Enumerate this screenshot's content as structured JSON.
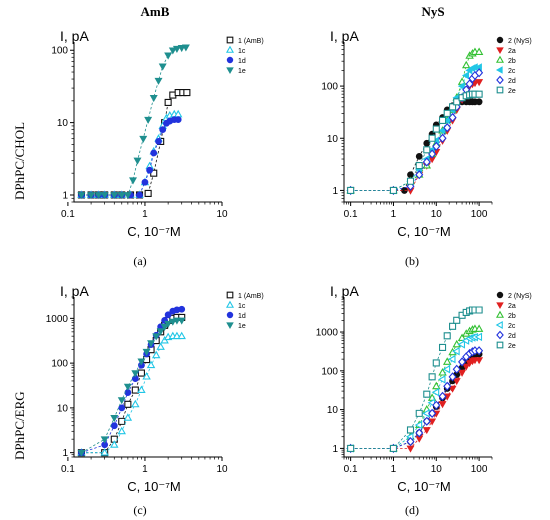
{
  "column_titles": [
    "AmB",
    "NyS"
  ],
  "row_labels": [
    "DPhPC/CHOL",
    "DPhPC/ERG"
  ],
  "panel_labels": [
    "(a)",
    "(b)",
    "(c)",
    "(d)"
  ],
  "colors": {
    "black": "#111111",
    "red": "#e02020",
    "green": "#33c033",
    "cyan": "#22c6e6",
    "blue": "#2233dd",
    "teal": "#1f8f8f"
  },
  "chart_data": [
    {
      "type": "scatter",
      "panel": "(a)",
      "xscale": "log",
      "yscale": "log",
      "ylabel": "I, pA",
      "xlabel": "C, 10⁻⁷M",
      "xlim": [
        0.12,
        10
      ],
      "ylim": [
        0.8,
        130
      ],
      "xticks": [
        0.1,
        1,
        10
      ],
      "xtick_labels": [
        "0.1",
        "1",
        "10"
      ],
      "yticks": [
        1,
        10,
        100
      ],
      "ytick_labels": [
        "1",
        "10",
        "100"
      ],
      "series": [
        {
          "name": "1 (AmB)",
          "color": "#111111",
          "marker": "square-open",
          "x": [
            0.15,
            0.2,
            0.25,
            0.3,
            0.4,
            0.5,
            0.65,
            0.85,
            1.1,
            1.3,
            1.6,
            1.8,
            2.0,
            2.3,
            2.7,
            3.1,
            3.5
          ],
          "y": [
            1,
            1,
            1,
            1,
            1,
            1,
            1,
            1,
            1.05,
            2.0,
            5.5,
            10,
            19,
            24,
            26,
            26,
            26
          ]
        },
        {
          "name": "1c",
          "color": "#22c6e6",
          "marker": "triangle-up-open",
          "x": [
            0.15,
            0.2,
            0.25,
            0.3,
            0.4,
            0.5,
            0.65,
            0.85,
            1.0,
            1.15,
            1.3,
            1.5,
            1.7,
            1.9,
            2.1,
            2.4,
            2.7
          ],
          "y": [
            1,
            1,
            1,
            1,
            1,
            1,
            1,
            1,
            1.5,
            2.5,
            4,
            6,
            9,
            11.5,
            12.5,
            13,
            13
          ]
        },
        {
          "name": "1d",
          "color": "#2233dd",
          "marker": "circle-filled",
          "x": [
            0.15,
            0.2,
            0.25,
            0.3,
            0.4,
            0.5,
            0.65,
            0.85,
            1.0,
            1.15,
            1.3,
            1.5,
            1.7,
            1.9,
            2.1,
            2.4,
            2.7
          ],
          "y": [
            1,
            1,
            1,
            1,
            1,
            1,
            1,
            1,
            1.5,
            2.2,
            3.8,
            5.5,
            8,
            9.8,
            10.5,
            11,
            11
          ]
        },
        {
          "name": "1e",
          "color": "#1f8f8f",
          "marker": "triangle-down-filled",
          "x": [
            0.15,
            0.2,
            0.25,
            0.3,
            0.4,
            0.5,
            0.6,
            0.7,
            0.8,
            0.95,
            1.1,
            1.3,
            1.5,
            1.7,
            2.0,
            2.3,
            2.6,
            3.0,
            3.4
          ],
          "y": [
            1,
            1,
            1,
            1,
            1,
            1,
            1,
            1.6,
            3,
            6,
            11,
            22,
            38,
            60,
            85,
            100,
            105,
            108,
            110
          ]
        }
      ]
    },
    {
      "type": "scatter",
      "panel": "(b)",
      "xscale": "log",
      "yscale": "log",
      "ylabel": "I, pA",
      "xlabel": "C, 10⁻⁷M",
      "xlim": [
        0.07,
        200
      ],
      "ylim": [
        0.6,
        700
      ],
      "xticks": [
        0.1,
        1,
        10,
        100
      ],
      "xtick_labels": [
        "0.1",
        "1",
        "10",
        "100"
      ],
      "yticks": [
        1,
        10,
        100
      ],
      "ytick_labels": [
        "1",
        "10",
        "100"
      ],
      "series": [
        {
          "name": "2 (NyS)",
          "color": "#111111",
          "marker": "circle-filled",
          "x": [
            0.1,
            1,
            1.8,
            2.5,
            4,
            6,
            8,
            10,
            14,
            18,
            24,
            30,
            40,
            50,
            60,
            70,
            80,
            100
          ],
          "y": [
            1,
            1,
            1,
            2,
            4.5,
            8,
            12,
            18,
            25,
            35,
            42,
            48,
            50,
            50,
            50,
            50,
            50,
            50
          ]
        },
        {
          "name": "2a",
          "color": "#e02020",
          "marker": "triangle-down-filled",
          "x": [
            0.1,
            1,
            2.5,
            4,
            6,
            8,
            10,
            14,
            18,
            24,
            30,
            40,
            50,
            60,
            70,
            80,
            100
          ],
          "y": [
            1,
            1,
            1,
            2,
            3,
            4,
            5.5,
            9,
            14,
            22,
            35,
            55,
            80,
            100,
            110,
            115,
            120
          ]
        },
        {
          "name": "2b",
          "color": "#33c033",
          "marker": "triangle-up-open",
          "x": [
            0.1,
            1,
            2.5,
            4,
            6,
            8,
            10,
            14,
            18,
            24,
            30,
            40,
            50,
            60,
            70,
            80,
            100
          ],
          "y": [
            1,
            1,
            1.5,
            2,
            3,
            5,
            8,
            14,
            22,
            35,
            60,
            120,
            250,
            380,
            420,
            450,
            450
          ]
        },
        {
          "name": "2c",
          "color": "#22c6e6",
          "marker": "triangle-left-filled",
          "x": [
            0.1,
            1,
            2.5,
            4,
            6,
            8,
            10,
            14,
            18,
            24,
            30,
            40,
            50,
            60,
            70,
            80,
            100
          ],
          "y": [
            1,
            1,
            1.5,
            2.5,
            4,
            6,
            9,
            14,
            22,
            35,
            60,
            100,
            160,
            200,
            220,
            230,
            230
          ]
        },
        {
          "name": "2d",
          "color": "#2233dd",
          "marker": "diamond-open",
          "x": [
            0.1,
            1,
            2.5,
            4,
            6,
            8,
            10,
            14,
            18,
            24,
            30,
            40,
            50,
            60,
            70,
            80,
            100
          ],
          "y": [
            1,
            1,
            1.2,
            2,
            3.5,
            5,
            7,
            10,
            16,
            25,
            40,
            60,
            85,
            110,
            140,
            160,
            180
          ]
        },
        {
          "name": "2e",
          "color": "#1f8f8f",
          "marker": "square-open",
          "x": [
            0.1,
            1,
            2.5,
            4,
            6,
            8,
            10,
            14,
            18,
            24,
            30,
            40,
            50,
            60,
            70,
            80,
            100
          ],
          "y": [
            1,
            1,
            1.5,
            3,
            6,
            10,
            15,
            22,
            30,
            40,
            50,
            60,
            65,
            68,
            70,
            70,
            70
          ]
        }
      ]
    },
    {
      "type": "scatter",
      "panel": "(c)",
      "xscale": "log",
      "yscale": "log",
      "ylabel": "I, pA",
      "xlabel": "C, 10⁻⁷M",
      "xlim": [
        0.12,
        10
      ],
      "ylim": [
        0.8,
        3000
      ],
      "xticks": [
        0.1,
        1,
        10
      ],
      "xtick_labels": [
        "0.1",
        "1",
        "10"
      ],
      "yticks": [
        1,
        10,
        100,
        1000
      ],
      "ytick_labels": [
        "1",
        "10",
        "100",
        "1000"
      ],
      "series": [
        {
          "name": "1 (AmB)",
          "color": "#111111",
          "marker": "square-open",
          "x": [
            0.15,
            0.3,
            0.4,
            0.5,
            0.6,
            0.75,
            0.9,
            1.05,
            1.2,
            1.4,
            1.6,
            1.8,
            2.0,
            2.3,
            2.6,
            3.0
          ],
          "y": [
            1,
            1,
            2,
            5,
            12,
            25,
            60,
            120,
            200,
            320,
            500,
            700,
            900,
            1000,
            1050,
            1050
          ]
        },
        {
          "name": "1c",
          "color": "#22c6e6",
          "marker": "triangle-up-open",
          "x": [
            0.15,
            0.3,
            0.4,
            0.5,
            0.6,
            0.75,
            0.9,
            1.05,
            1.2,
            1.4,
            1.6,
            1.8,
            2.0,
            2.3,
            2.6,
            3.0
          ],
          "y": [
            1,
            1,
            1.5,
            3,
            6,
            12,
            25,
            50,
            90,
            150,
            230,
            320,
            380,
            400,
            400,
            400
          ]
        },
        {
          "name": "1d",
          "color": "#2233dd",
          "marker": "circle-filled",
          "x": [
            0.15,
            0.3,
            0.4,
            0.5,
            0.6,
            0.75,
            0.9,
            1.05,
            1.2,
            1.4,
            1.6,
            1.8,
            2.0,
            2.3,
            2.6,
            3.0
          ],
          "y": [
            1,
            1.5,
            4,
            10,
            22,
            45,
            90,
            160,
            260,
            420,
            650,
            900,
            1200,
            1450,
            1550,
            1600
          ]
        },
        {
          "name": "1e",
          "color": "#1f8f8f",
          "marker": "triangle-down-filled",
          "x": [
            0.15,
            0.3,
            0.4,
            0.5,
            0.6,
            0.75,
            0.9,
            1.05,
            1.2,
            1.4,
            1.6,
            1.8,
            2.0,
            2.3,
            2.6,
            3.0
          ],
          "y": [
            1,
            2,
            6,
            15,
            30,
            60,
            110,
            180,
            280,
            400,
            520,
            650,
            760,
            850,
            900,
            900
          ]
        }
      ]
    },
    {
      "type": "scatter",
      "panel": "(d)",
      "xscale": "log",
      "yscale": "log",
      "ylabel": "I, pA",
      "xlabel": "C, 10⁻⁷M",
      "xlim": [
        0.07,
        200
      ],
      "ylim": [
        0.6,
        8000
      ],
      "xticks": [
        0.1,
        1,
        10,
        100
      ],
      "xtick_labels": [
        "0.1",
        "1",
        "10",
        "100"
      ],
      "yticks": [
        1,
        10,
        100,
        1000
      ],
      "ytick_labels": [
        "1",
        "10",
        "100",
        "1000"
      ],
      "series": [
        {
          "name": "2 (NyS)",
          "color": "#111111",
          "marker": "circle-filled",
          "x": [
            0.1,
            1,
            2.5,
            4,
            6,
            8,
            10,
            14,
            18,
            24,
            30,
            40,
            50,
            60,
            70,
            80,
            100
          ],
          "y": [
            1,
            1,
            1.5,
            2.5,
            5,
            8,
            12,
            20,
            35,
            55,
            80,
            120,
            170,
            210,
            240,
            260,
            270
          ]
        },
        {
          "name": "2a",
          "color": "#e02020",
          "marker": "triangle-down-filled",
          "x": [
            0.1,
            1,
            2.5,
            4,
            6,
            8,
            10,
            14,
            18,
            24,
            30,
            40,
            50,
            60,
            70,
            80,
            100
          ],
          "y": [
            1,
            1,
            1,
            1.8,
            3,
            5,
            8,
            14,
            22,
            35,
            55,
            90,
            130,
            160,
            180,
            190,
            190
          ]
        },
        {
          "name": "2b",
          "color": "#33c033",
          "marker": "triangle-up-open",
          "x": [
            0.1,
            1,
            2.5,
            4,
            6,
            8,
            10,
            14,
            18,
            24,
            30,
            40,
            50,
            60,
            70,
            80,
            100
          ],
          "y": [
            1,
            1,
            2,
            4,
            10,
            20,
            40,
            90,
            170,
            300,
            480,
            700,
            900,
            1050,
            1150,
            1200,
            1200
          ]
        },
        {
          "name": "2c",
          "color": "#22c6e6",
          "marker": "triangle-left-open",
          "x": [
            0.1,
            1,
            2.5,
            4,
            6,
            8,
            10,
            14,
            18,
            24,
            30,
            40,
            50,
            60,
            70,
            80,
            100
          ],
          "y": [
            1,
            1,
            2,
            4,
            8,
            15,
            28,
            60,
            110,
            200,
            320,
            480,
            600,
            680,
            720,
            740,
            750
          ]
        },
        {
          "name": "2d",
          "color": "#2233dd",
          "marker": "diamond-open",
          "x": [
            0.1,
            1,
            2.5,
            4,
            6,
            8,
            10,
            14,
            18,
            24,
            30,
            40,
            50,
            60,
            70,
            80,
            100
          ],
          "y": [
            1,
            1,
            1.5,
            2.5,
            5,
            8,
            13,
            22,
            40,
            70,
            110,
            170,
            230,
            280,
            310,
            330,
            330
          ]
        },
        {
          "name": "2e",
          "color": "#1f8f8f",
          "marker": "square-open",
          "x": [
            0.1,
            1,
            2.5,
            4,
            6,
            8,
            10,
            14,
            18,
            24,
            30,
            40,
            50,
            60,
            70,
            80,
            100
          ],
          "y": [
            1,
            1,
            3,
            8,
            25,
            70,
            160,
            400,
            800,
            1400,
            2000,
            2700,
            3200,
            3500,
            3700,
            3700,
            3700
          ]
        }
      ]
    }
  ]
}
